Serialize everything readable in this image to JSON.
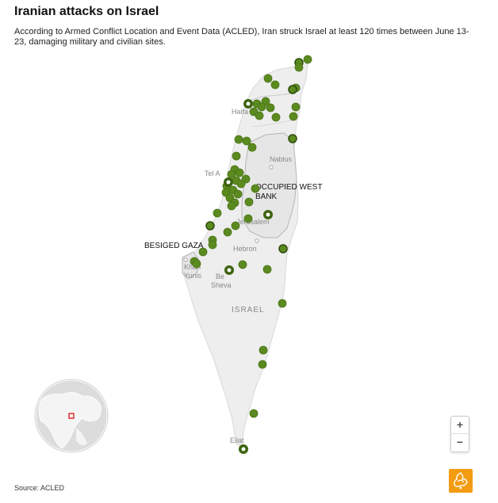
{
  "header": {
    "title": "Iranian attacks on Israel",
    "subtitle": "According to Armed Conflict Location and Event Data (ACLED), Iran struck Israel at least 120 times between June 13-23, damaging military and civilian sites."
  },
  "map": {
    "region_labels": {
      "west_bank_line1": "OCCUPIED WEST",
      "west_bank_line2": "BANK",
      "gaza": "BESIGED GAZA"
    },
    "city_labels": {
      "haifa": "Haifa",
      "tel_aviv": "Tel A",
      "nablus": "Nablus",
      "jerusalem": "Jerusalem",
      "hebron": "Hebron",
      "khan_yunis_line1": "Khan",
      "khan_yunis_line2": "Yunis",
      "beersheba_line1": "Be",
      "beersheba_line2": "Sheva",
      "israel": "ISRAEL",
      "eilat": "Eilat"
    },
    "colors": {
      "marker_fill": "#5b8a1f",
      "marker_stroke": "#3d6410",
      "land": "#eeeeee",
      "border": "#bbbbbb",
      "ocean": "#ffffff"
    },
    "marker_icon": "strike-marker"
  },
  "locator": {
    "icon": "globe-locator-icon",
    "highlight_color": "#e02020"
  },
  "controls": {
    "zoom_in": "+",
    "zoom_out": "−"
  },
  "footer": {
    "source": "Source: ACLED"
  },
  "branding": {
    "logo_icon": "al-jazeera-logo-icon",
    "color": "#f39c12"
  }
}
